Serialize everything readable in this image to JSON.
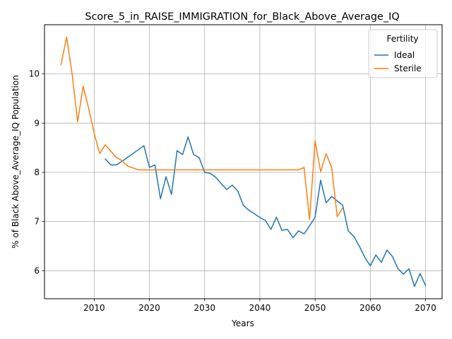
{
  "chart_data": {
    "type": "line",
    "title": "Score_5_in_RAISE_IMMIGRATION_for_Black_Above_Average_IQ",
    "xlabel": "Years",
    "ylabel": "% of Black Above_Average_IQ Population",
    "xlim": [
      2001,
      2073
    ],
    "ylim": [
      5.43,
      11.0
    ],
    "xticks": [
      2010,
      2020,
      2030,
      2040,
      2050,
      2060,
      2070
    ],
    "yticks": [
      6,
      7,
      8,
      9,
      10
    ],
    "grid": true,
    "legend": {
      "title": "Fertility",
      "placement": "top-right"
    },
    "series": [
      {
        "name": "Ideal",
        "color": "#1f77b4",
        "x": [
          2012,
          2013,
          2014,
          2015,
          2016,
          2017,
          2018,
          2019,
          2020,
          2021,
          2022,
          2023,
          2024,
          2025,
          2026,
          2027,
          2028,
          2029,
          2030,
          2031,
          2032,
          2033,
          2034,
          2035,
          2036,
          2037,
          2038,
          2039,
          2040,
          2041,
          2042,
          2043,
          2044,
          2045,
          2046,
          2047,
          2048,
          2049,
          2050,
          2051,
          2052,
          2053,
          2054,
          2055,
          2056,
          2057,
          2058,
          2059,
          2060,
          2061,
          2062,
          2063,
          2064,
          2065,
          2066,
          2067,
          2068,
          2069,
          2070
        ],
        "y": [
          8.27,
          8.15,
          8.15,
          8.22,
          8.3,
          8.38,
          8.46,
          8.54,
          8.1,
          8.15,
          7.46,
          7.91,
          7.55,
          8.44,
          8.36,
          8.72,
          8.36,
          8.3,
          8.0,
          7.98,
          7.9,
          7.77,
          7.65,
          7.74,
          7.62,
          7.33,
          7.23,
          7.16,
          7.08,
          7.02,
          6.84,
          7.09,
          6.82,
          6.84,
          6.67,
          6.81,
          6.75,
          6.91,
          7.09,
          7.84,
          7.38,
          7.51,
          7.42,
          7.33,
          6.81,
          6.7,
          6.5,
          6.27,
          6.1,
          6.32,
          6.17,
          6.42,
          6.29,
          6.04,
          5.93,
          6.04,
          5.68,
          5.94,
          5.7
        ]
      },
      {
        "name": "Sterile",
        "color": "#ff7f0e",
        "x": [
          2004,
          2005,
          2006,
          2007,
          2008,
          2009,
          2010,
          2011,
          2012,
          2013,
          2014,
          2015,
          2016,
          2017,
          2018,
          2019,
          2020,
          2025,
          2030,
          2035,
          2040,
          2045,
          2047,
          2048,
          2049,
          2050,
          2051,
          2052,
          2053,
          2054,
          2055
        ],
        "y": [
          10.19,
          10.75,
          10.0,
          9.03,
          9.75,
          9.3,
          8.79,
          8.38,
          8.56,
          8.43,
          8.3,
          8.24,
          8.13,
          8.09,
          8.05,
          8.05,
          8.05,
          8.05,
          8.05,
          8.05,
          8.05,
          8.05,
          8.05,
          8.1,
          7.04,
          8.64,
          8.01,
          8.38,
          8.1,
          7.1,
          7.28
        ]
      }
    ]
  }
}
